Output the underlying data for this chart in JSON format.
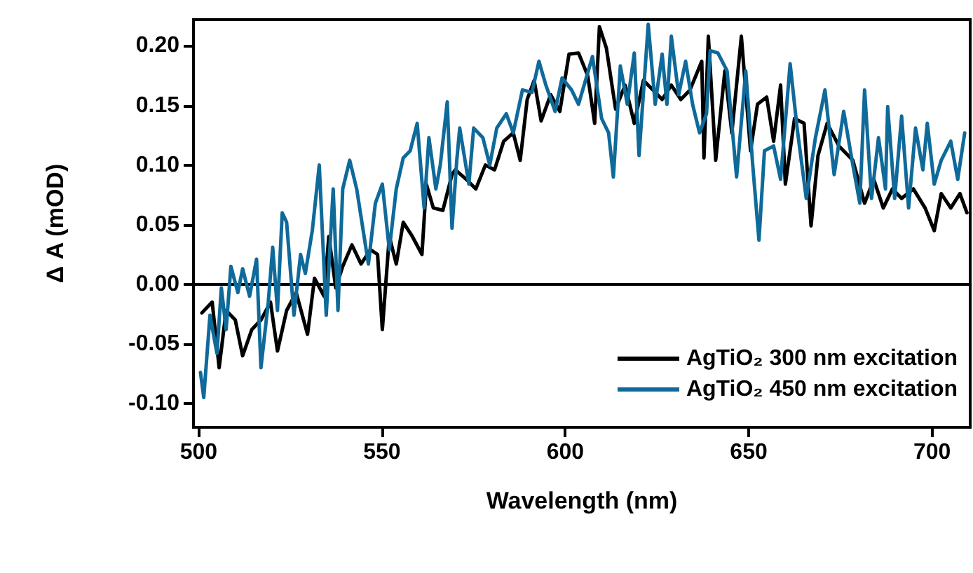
{
  "chart_data": {
    "type": "line",
    "xlabel": "Wavelength (nm)",
    "ylabel": "Δ A (mOD)",
    "xlim": [
      498.6,
      710.4
    ],
    "ylim": [
      -0.12,
      0.222
    ],
    "xticks": [
      500,
      550,
      600,
      650,
      700
    ],
    "yticks": [
      {
        "value": -0.1,
        "label": "-0.10"
      },
      {
        "value": -0.05,
        "label": "-0.05"
      },
      {
        "value": 0,
        "label": "0.00"
      },
      {
        "value": 0.05,
        "label": "0.05"
      },
      {
        "value": 0.1,
        "label": "0.10"
      },
      {
        "value": 0.15,
        "label": "0.15"
      },
      {
        "value": 0.2,
        "label": "0.20"
      }
    ],
    "grid": false,
    "legend": "bottom right",
    "marker": "none",
    "line_style": "solid",
    "ref_lines": [
      {
        "axis": "y",
        "value": 0,
        "color": "#000000"
      }
    ],
    "series": [
      {
        "name": "AgTiO₂ 300 nm excitation",
        "color": "#000000",
        "x": [
          500.9,
          503.7,
          505.6,
          507.5,
          510,
          512,
          514.5,
          517,
          519.6,
          521.5,
          524,
          526.6,
          529.7,
          531.6,
          534.2,
          535.5,
          537.4,
          539.3,
          541.8,
          544.3,
          546.9,
          548.8,
          550.1,
          552,
          553.9,
          555.8,
          558.3,
          560.9,
          562.1,
          564,
          566.6,
          569.1,
          570,
          573,
          575.6,
          578.2,
          580.7,
          583.2,
          585.8,
          587.7,
          589.6,
          591.5,
          593.4,
          596,
          598.5,
          601,
          603.6,
          606.1,
          608,
          609.3,
          611.2,
          613.7,
          616.3,
          618.8,
          621.3,
          623.9,
          626.4,
          628.9,
          631.5,
          634,
          637.2,
          637.8,
          639,
          641,
          643.5,
          645.4,
          648,
          650.5,
          652.4,
          654.9,
          656.8,
          658.7,
          660,
          662.5,
          665.1,
          667,
          668.9,
          671.4,
          674.6,
          678.4,
          681.6,
          684.1,
          686.7,
          689.2,
          691.7,
          694.9,
          698.1,
          700.6,
          702.5,
          705.1,
          707.6,
          709.5
        ],
        "values": [
          -0.024,
          -0.015,
          -0.07,
          -0.022,
          -0.03,
          -0.06,
          -0.038,
          -0.03,
          -0.015,
          -0.056,
          -0.022,
          -0.007,
          -0.042,
          0.005,
          -0.01,
          0.04,
          -0.003,
          0.015,
          0.033,
          0.017,
          0.029,
          0.025,
          -0.038,
          0.04,
          0.017,
          0.052,
          0.04,
          0.025,
          0.084,
          0.064,
          0.062,
          0.092,
          0.096,
          0.088,
          0.08,
          0.1,
          0.096,
          0.12,
          0.127,
          0.104,
          0.155,
          0.171,
          0.137,
          0.159,
          0.145,
          0.193,
          0.194,
          0.175,
          0.135,
          0.216,
          0.198,
          0.147,
          0.167,
          0.135,
          0.171,
          0.163,
          0.155,
          0.167,
          0.155,
          0.163,
          0.187,
          0.106,
          0.208,
          0.104,
          0.179,
          0.127,
          0.208,
          0.112,
          0.151,
          0.157,
          0.12,
          0.167,
          0.084,
          0.139,
          0.135,
          0.049,
          0.108,
          0.135,
          0.116,
          0.104,
          0.068,
          0.088,
          0.064,
          0.08,
          0.072,
          0.08,
          0.064,
          0.045,
          0.076,
          0.064,
          0.076,
          0.06
        ]
      },
      {
        "name": "AgTiO₂ 450 nm excitation",
        "color": "#0f6a9a",
        "x": [
          500.5,
          501.4,
          503.1,
          505,
          506.2,
          507.5,
          508.8,
          510.7,
          512,
          513.9,
          515.8,
          517,
          519,
          520.2,
          521.5,
          522.8,
          524,
          526,
          527.8,
          529.1,
          531,
          532.9,
          534.8,
          536.7,
          538,
          539.3,
          541.2,
          543.1,
          546.3,
          548.2,
          550.1,
          552,
          553.9,
          555.8,
          557.7,
          559.6,
          561.5,
          562.8,
          564.7,
          565.9,
          567.8,
          569.1,
          570.4,
          571.2,
          573.7,
          575,
          577.5,
          579.4,
          581.3,
          583.9,
          585.8,
          588.3,
          590.9,
          592.8,
          594.7,
          597.2,
          599.1,
          601.7,
          603.6,
          605.5,
          607.4,
          609.9,
          611.8,
          613.1,
          615,
          616.9,
          618.8,
          620.1,
          622.6,
          624.5,
          626.4,
          627.7,
          628.9,
          630.9,
          632.8,
          634.7,
          636.6,
          638.5,
          639.5,
          641.6,
          644.1,
          646.7,
          649.2,
          651.1,
          652.8,
          654.3,
          656.8,
          658.7,
          661.3,
          663.2,
          665.7,
          668.2,
          670.8,
          673.3,
          675.9,
          678.4,
          680.3,
          681.6,
          683.5,
          685.4,
          687.3,
          687.9,
          689.8,
          691.7,
          693.6,
          695.5,
          697.5,
          698.7,
          700.6,
          702.5,
          705.1,
          707,
          708.9
        ],
        "values": [
          -0.074,
          -0.095,
          -0.026,
          -0.058,
          -0.003,
          -0.038,
          0.015,
          -0.007,
          0.013,
          -0.01,
          0.021,
          -0.07,
          -0.015,
          0.031,
          -0.022,
          0.06,
          0.052,
          -0.026,
          0.025,
          0.009,
          0.045,
          0.1,
          -0.026,
          0.08,
          -0.022,
          0.08,
          0.104,
          0.08,
          0.017,
          0.068,
          0.084,
          0.029,
          0.08,
          0.106,
          0.112,
          0.135,
          0.064,
          0.123,
          0.08,
          0.1,
          0.153,
          0.047,
          0.104,
          0.131,
          0.084,
          0.131,
          0.123,
          0.1,
          0.131,
          0.143,
          0.127,
          0.163,
          0.161,
          0.187,
          0.167,
          0.145,
          0.173,
          0.163,
          0.151,
          0.171,
          0.191,
          0.139,
          0.127,
          0.09,
          0.183,
          0.151,
          0.194,
          0.108,
          0.218,
          0.151,
          0.193,
          0.151,
          0.208,
          0.159,
          0.187,
          0.151,
          0.127,
          0.143,
          0.196,
          0.194,
          0.179,
          0.09,
          0.179,
          0.1,
          0.037,
          0.112,
          0.116,
          0.088,
          0.185,
          0.131,
          0.072,
          0.123,
          0.163,
          0.092,
          0.145,
          0.1,
          0.068,
          0.163,
          0.072,
          0.123,
          0.08,
          0.149,
          0.072,
          0.141,
          0.064,
          0.131,
          0.096,
          0.135,
          0.084,
          0.104,
          0.12,
          0.088,
          0.127
        ]
      }
    ]
  }
}
